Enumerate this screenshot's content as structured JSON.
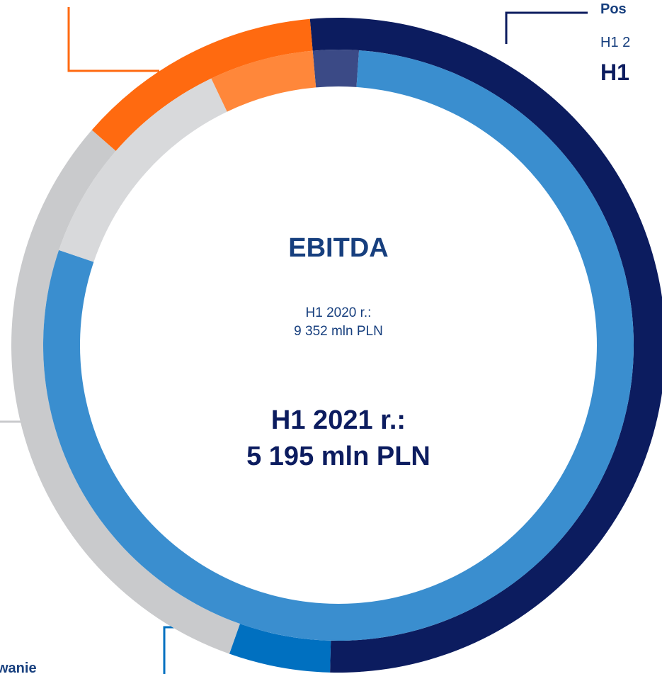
{
  "chart_data": {
    "type": "donut",
    "title": "EBITDA",
    "start_angle": -5,
    "center_texts": [
      "H1 2020 r.:",
      "9 352 mln PLN",
      "H1 2021 r.:",
      "5 195 mln PLN"
    ],
    "annotations": [
      "Pos",
      "H1 2",
      "H1",
      "wanie"
    ],
    "series": [
      {
        "values": [
          51.8,
          5.0,
          31.0,
          12.2
        ],
        "colors": [
          "#0c1c5f",
          "#0070c0",
          "#c9cacc",
          "#ff6a10"
        ]
      },
      {
        "values": [
          2.5,
          79.1,
          12.7,
          5.7
        ],
        "colors": [
          "#3b4a86",
          "#3a8ecf",
          "#d8d9db",
          "#ff873a"
        ]
      }
    ]
  }
}
